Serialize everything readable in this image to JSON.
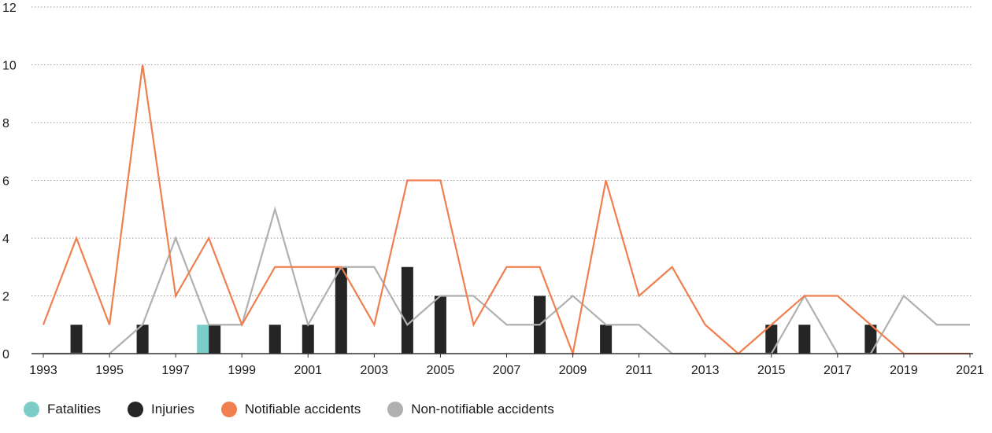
{
  "chart_data": {
    "type": "bar",
    "x": [
      1993,
      1994,
      1995,
      1996,
      1997,
      1998,
      1999,
      2000,
      2001,
      2002,
      2003,
      2004,
      2005,
      2006,
      2007,
      2008,
      2009,
      2010,
      2011,
      2012,
      2013,
      2014,
      2015,
      2016,
      2017,
      2018,
      2019,
      2020,
      2021
    ],
    "xticks": [
      "1993",
      "1995",
      "1997",
      "1999",
      "2001",
      "2003",
      "2005",
      "2007",
      "2009",
      "2011",
      "2013",
      "2015",
      "2017",
      "2019",
      "2021"
    ],
    "yticks": [
      "0",
      "2",
      "4",
      "6",
      "8",
      "10",
      "12"
    ],
    "ylim": [
      0,
      12
    ],
    "grid": true,
    "legend_position": "bottom-left",
    "series": [
      {
        "name": "Fatalities",
        "type": "bar",
        "color": "#7ccdc8",
        "values": [
          0,
          0,
          0,
          0,
          0,
          1,
          0,
          0,
          0,
          0,
          0,
          0,
          0,
          0,
          0,
          0,
          0,
          0,
          0,
          0,
          0,
          0,
          0,
          0,
          0,
          0,
          0,
          0,
          0
        ]
      },
      {
        "name": "Injuries",
        "type": "bar",
        "color": "#252525",
        "values": [
          0,
          1,
          0,
          1,
          0,
          1,
          0,
          1,
          1,
          3,
          0,
          3,
          2,
          0,
          0,
          2,
          0,
          1,
          0,
          0,
          0,
          0,
          1,
          1,
          0,
          1,
          0,
          0,
          0
        ]
      },
      {
        "name": "Notifiable accidents",
        "type": "line",
        "color": "#f07f50",
        "values": [
          1,
          4,
          1,
          10,
          2,
          4,
          1,
          3,
          3,
          3,
          1,
          6,
          6,
          1,
          3,
          3,
          0,
          6,
          2,
          3,
          1,
          0,
          1,
          2,
          2,
          1,
          0,
          0,
          0
        ]
      },
      {
        "name": "Non-notifiable accidents",
        "type": "line",
        "color": "#b0b0b0",
        "values": [
          0,
          0,
          0,
          1,
          4,
          1,
          1,
          5,
          1,
          3,
          3,
          1,
          2,
          2,
          1,
          1,
          2,
          1,
          1,
          0,
          0,
          0,
          0,
          2,
          0,
          0,
          2,
          1,
          1
        ]
      }
    ]
  }
}
